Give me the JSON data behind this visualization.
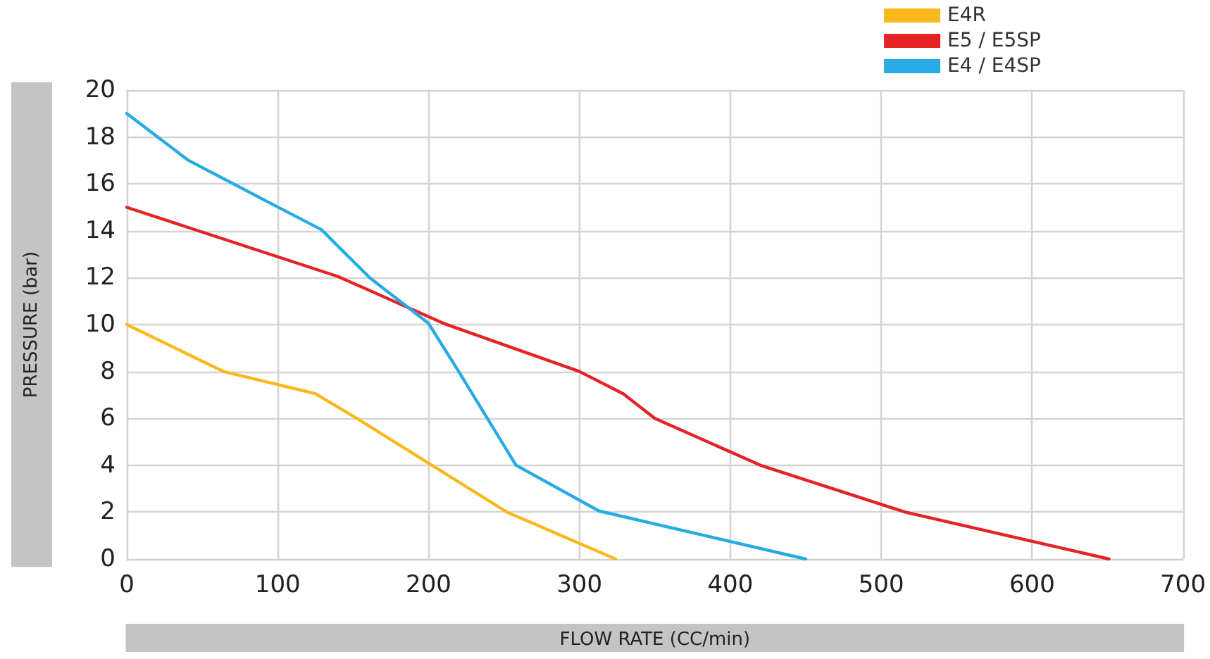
{
  "chart_data": {
    "type": "line",
    "xlabel": "FLOW RATE (CC/min)",
    "ylabel": "PRESSURE (bar)",
    "xlim": [
      0,
      700
    ],
    "xticks": [
      0,
      100,
      200,
      300,
      400,
      500,
      600,
      700
    ],
    "ylim": [
      0,
      20
    ],
    "yticks": [
      0,
      2,
      4,
      6,
      8,
      10,
      12,
      14,
      16,
      18,
      20
    ],
    "grid": true,
    "legend": "top right",
    "marker": "none",
    "line_style": "solid",
    "series": [
      {
        "name": "E4R",
        "color": "#fbb81c",
        "x": [
          0,
          64,
          125,
          155,
          252,
          324
        ],
        "values": [
          10,
          8,
          7.05,
          5.9,
          2,
          0
        ]
      },
      {
        "name": "E5 / E5SP",
        "color": "#e42326",
        "x": [
          0,
          140,
          210,
          300,
          329,
          350,
          420,
          516,
          651
        ],
        "values": [
          15,
          12.05,
          10.05,
          8,
          7.05,
          6,
          4,
          2,
          0
        ]
      },
      {
        "name": "E4 / E4SP",
        "color": "#27abe2",
        "x": [
          0,
          41,
          99,
          129,
          161,
          200,
          220,
          258,
          313,
          450
        ],
        "values": [
          19,
          17,
          15.05,
          14.05,
          12,
          10.05,
          8,
          4,
          2.05,
          0
        ]
      }
    ]
  }
}
